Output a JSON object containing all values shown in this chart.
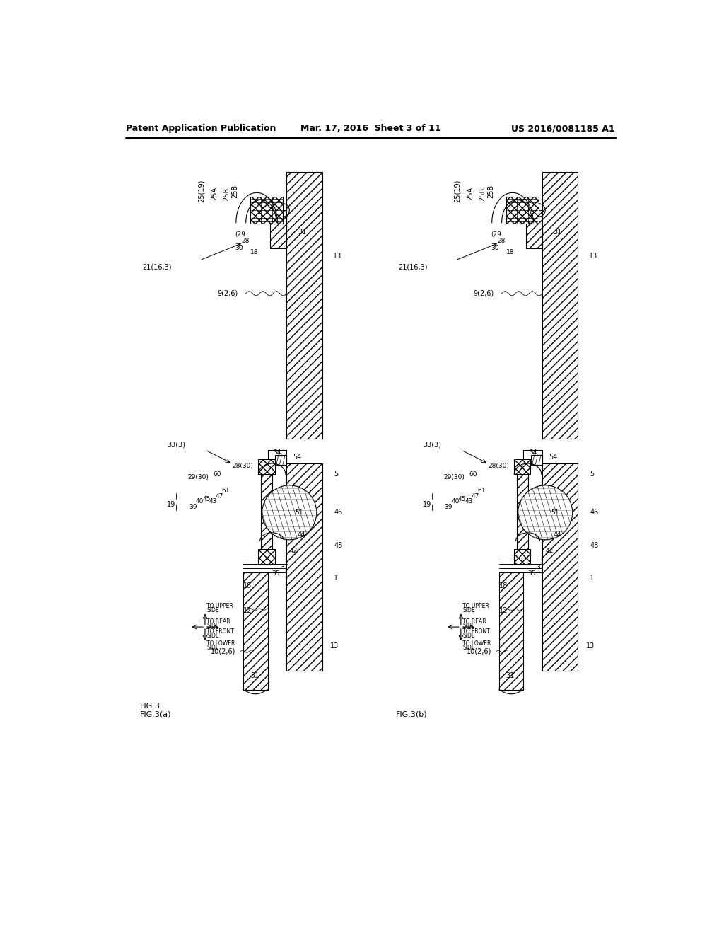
{
  "background_color": "#ffffff",
  "header_left": "Patent Application Publication",
  "header_center": "Mar. 17, 2016  Sheet 3 of 11",
  "header_right": "US 2016/0081185 A1",
  "text_color": "#000000"
}
